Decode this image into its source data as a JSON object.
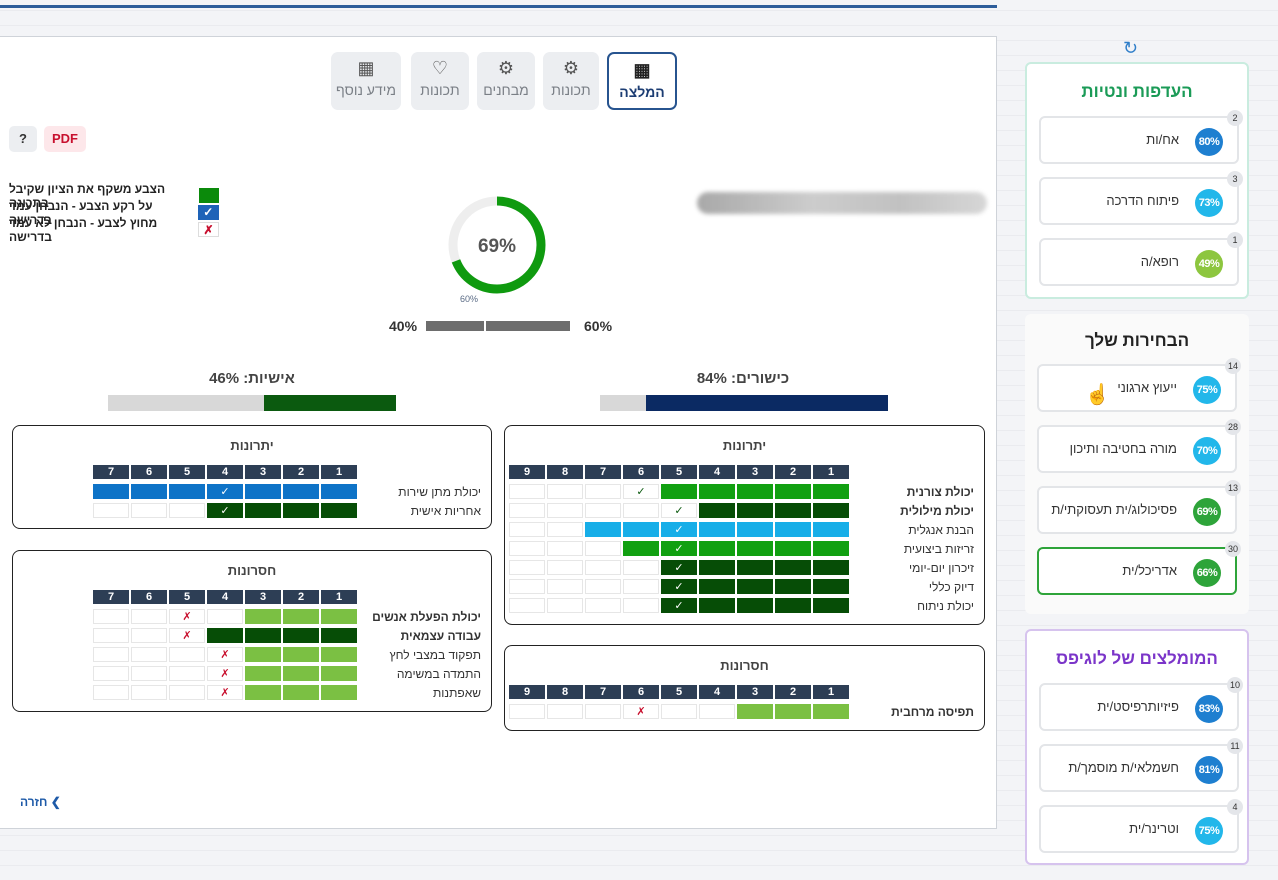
{
  "tabs": [
    {
      "label": "המלצה",
      "icon": "report-icon",
      "active": true
    },
    {
      "label": "תכונות",
      "icon": "head-gear-icon",
      "active": false
    },
    {
      "label": "מבחנים",
      "icon": "head-gear-icon",
      "active": false
    },
    {
      "label": "תכונות",
      "icon": "heart-icon",
      "active": false
    },
    {
      "label": "מידע נוסף",
      "icon": "report-icon",
      "active": false
    }
  ],
  "buttons": {
    "pdf": "PDF",
    "help": "?"
  },
  "legend": [
    {
      "text": "הצבע משקף את הציון שקיבל בתכונה",
      "mark": ""
    },
    {
      "text": "על רקע הצבע - הנבחן עמד בדרישה",
      "mark": "✓"
    },
    {
      "text": "מחוץ לצבע - הנבחן לא עמד בדרישה",
      "mark": "✗"
    }
  ],
  "score": {
    "value": "69%",
    "threshold_label": "60%",
    "value_fraction": 0.69,
    "threshold_fraction": 0.6
  },
  "split": {
    "left": "40%",
    "right": "60%"
  },
  "abilities": {
    "title": "כישורים: 84%",
    "fraction": 0.84
  },
  "personality": {
    "title": "אישיות: 46%",
    "fraction": 0.46
  },
  "colors": {
    "navy": "#0b2a63",
    "darkgreen": "#0b5a0f",
    "green": "#11a011",
    "lightgreen": "#7bc043",
    "blue": "#0e73c7",
    "cyan": "#17aee8",
    "darkgreen2": "#064d06",
    "gray": "#d8d8d8"
  },
  "cards": {
    "ability_strengths": {
      "title": "יתרונות",
      "cols": [
        "1",
        "2",
        "3",
        "4",
        "5",
        "6",
        "7",
        "8",
        "9"
      ],
      "rows": [
        {
          "label": "יכולת צורנית",
          "bold": true,
          "fill": 5,
          "color": "#11a011",
          "mark_col": 6,
          "mark": "✓"
        },
        {
          "label": "יכולת מילולית",
          "bold": true,
          "fill": 4,
          "color": "#064d06",
          "mark_col": 5,
          "mark": "✓"
        },
        {
          "label": "הבנת אנגלית",
          "bold": false,
          "fill": 7,
          "color": "#17aee8",
          "mark_col": 5,
          "mark": "✓"
        },
        {
          "label": "זריזות ביצועית",
          "bold": false,
          "fill": 6,
          "color": "#11a011",
          "mark_col": 5,
          "mark": "✓"
        },
        {
          "label": "זיכרון יום-יומי",
          "bold": false,
          "fill": 5,
          "color": "#064d06",
          "mark_col": 5,
          "mark": "✓"
        },
        {
          "label": "דיוק כללי",
          "bold": false,
          "fill": 5,
          "color": "#064d06",
          "mark_col": 5,
          "mark": "✓"
        },
        {
          "label": "יכולת ניתוח",
          "bold": false,
          "fill": 5,
          "color": "#064d06",
          "mark_col": 5,
          "mark": "✓"
        }
      ]
    },
    "ability_weaknesses": {
      "title": "חסרונות",
      "cols": [
        "1",
        "2",
        "3",
        "4",
        "5",
        "6",
        "7",
        "8",
        "9"
      ],
      "rows": [
        {
          "label": "תפיסה מרחבית",
          "bold": true,
          "fill": 3,
          "color": "#7bc043",
          "mark_col": 6,
          "mark": "✗"
        }
      ]
    },
    "personal_strengths": {
      "title": "יתרונות",
      "cols": [
        "1",
        "2",
        "3",
        "4",
        "5",
        "6",
        "7"
      ],
      "rows": [
        {
          "label": "יכולת מתן שירות",
          "bold": false,
          "fill": 7,
          "color": "#0e73c7",
          "mark_col": 4,
          "mark": "✓"
        },
        {
          "label": "אחריות אישית",
          "bold": false,
          "fill": 4,
          "color": "#064d06",
          "mark_col": 4,
          "mark": "✓"
        }
      ]
    },
    "personal_weaknesses": {
      "title": "חסרונות",
      "cols": [
        "1",
        "2",
        "3",
        "4",
        "5",
        "6",
        "7"
      ],
      "rows": [
        {
          "label": "יכולת הפעלת אנשים",
          "bold": true,
          "fill": 3,
          "color": "#7bc043",
          "mark_col": 5,
          "mark": "✗"
        },
        {
          "label": "עבודה עצמאית",
          "bold": true,
          "fill": 4,
          "color": "#064d06",
          "mark_col": 5,
          "mark": "✗"
        },
        {
          "label": "תפקוד במצבי לחץ",
          "bold": false,
          "fill": 3,
          "color": "#7bc043",
          "mark_col": 4,
          "mark": "✗"
        },
        {
          "label": "התמדה במשימה",
          "bold": false,
          "fill": 3,
          "color": "#7bc043",
          "mark_col": 4,
          "mark": "✗"
        },
        {
          "label": "שאפתנות",
          "bold": false,
          "fill": 3,
          "color": "#7bc043",
          "mark_col": 4,
          "mark": "✗"
        }
      ]
    }
  },
  "back": "חזרה",
  "preferences": {
    "title": "העדפות ונטיות",
    "items": [
      {
        "label": "אח/ות",
        "pct": "80%",
        "count": "2",
        "color": "#1e7fd0"
      },
      {
        "label": "פיתוח הדרכה",
        "pct": "73%",
        "count": "3",
        "color": "#22b7ea"
      },
      {
        "label": "רופא/ה",
        "pct": "49%",
        "count": "1",
        "color": "#8dc63f"
      }
    ]
  },
  "choices": {
    "title": "הבחירות שלך",
    "items": [
      {
        "label": "ייעוץ ארגוני",
        "pct": "75%",
        "count": "14",
        "color": "#22b7ea"
      },
      {
        "label": "מורה בחטיבה ותיכון",
        "pct": "70%",
        "count": "28",
        "color": "#22b7ea"
      },
      {
        "label": "פסיכולוג/ית תעסוקתי/ת",
        "pct": "69%",
        "count": "13",
        "color": "#2ea43a"
      },
      {
        "label": "אדריכל/ית",
        "pct": "66%",
        "count": "30",
        "color": "#2ea43a"
      }
    ]
  },
  "recommended": {
    "title": "המומלצים של לוגיפס",
    "items": [
      {
        "label": "פיזיותרפיסט/ית",
        "pct": "83%",
        "count": "10",
        "color": "#1e7fd0"
      },
      {
        "label": "חשמלאי/ת מוסמך/ת",
        "pct": "81%",
        "count": "11",
        "color": "#1e7fd0"
      },
      {
        "label": "וטרינר/ית",
        "pct": "75%",
        "count": "4",
        "color": "#22b7ea"
      }
    ]
  }
}
